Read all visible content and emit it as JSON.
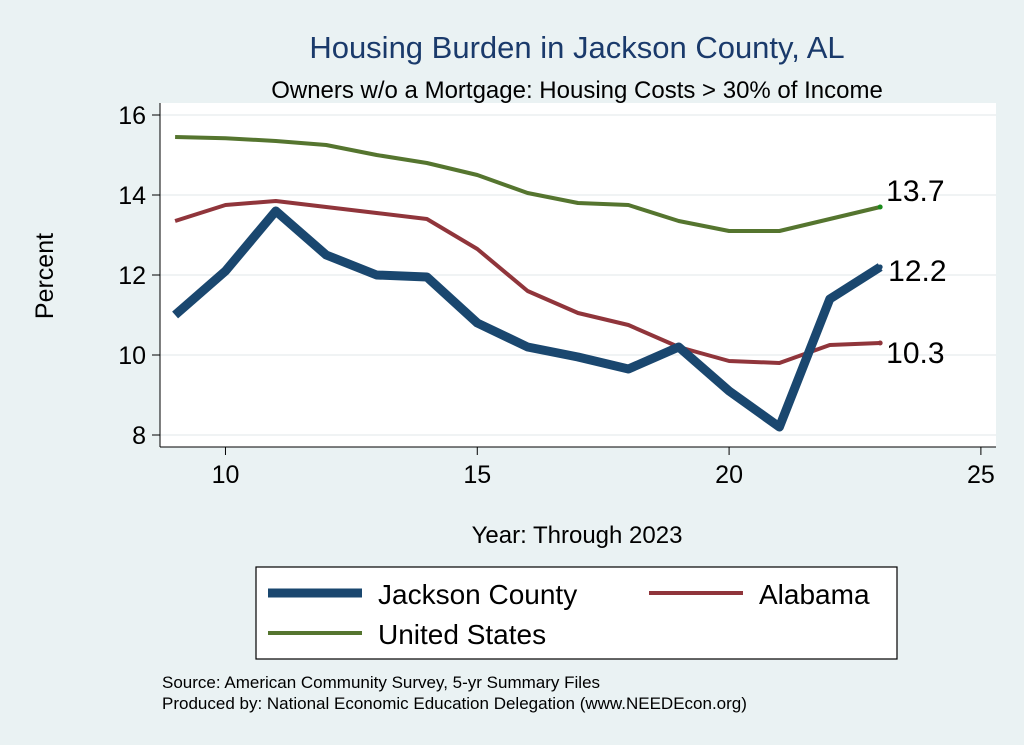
{
  "chart_data": {
    "type": "line",
    "title": "Housing Burden in Jackson County, AL",
    "subtitle": "Owners w/o a Mortgage: Housing Costs > 30% of Income",
    "xlabel": "Year: Through 2023",
    "ylabel": "Percent",
    "xlim": [
      8.7,
      25.3
    ],
    "ylim": [
      7.7,
      16.3
    ],
    "x_ticks": [
      10,
      15,
      20,
      25
    ],
    "y_ticks": [
      8,
      10,
      12,
      14,
      16
    ],
    "grid": true,
    "legend_position": "bottom",
    "x": [
      9,
      10,
      11,
      12,
      13,
      14,
      15,
      16,
      17,
      18,
      19,
      20,
      21,
      22,
      23
    ],
    "series": [
      {
        "name": "Jackson County",
        "color": "#1a476f",
        "values": [
          11.0,
          12.1,
          13.6,
          12.5,
          12.0,
          11.95,
          10.8,
          10.2,
          9.95,
          9.65,
          10.2,
          9.1,
          8.2,
          11.4,
          12.2
        ],
        "end_label": "12.2"
      },
      {
        "name": "Alabama",
        "color": "#90353b",
        "values": [
          13.35,
          13.75,
          13.85,
          13.7,
          13.55,
          13.4,
          12.65,
          11.6,
          11.05,
          10.75,
          10.2,
          9.85,
          9.8,
          10.25,
          10.3
        ],
        "end_label": "10.3"
      },
      {
        "name": "United States",
        "color": "#55752f",
        "values": [
          15.45,
          15.42,
          15.35,
          15.25,
          15.0,
          14.8,
          14.5,
          14.05,
          13.8,
          13.75,
          13.35,
          13.1,
          13.1,
          13.4,
          13.7
        ],
        "end_label": "13.7"
      }
    ],
    "source_lines": [
      "Source: American Community Survey, 5-yr Summary Files",
      "Produced by: National Economic Education Delegation (www.NEEDEcon.org)"
    ]
  }
}
